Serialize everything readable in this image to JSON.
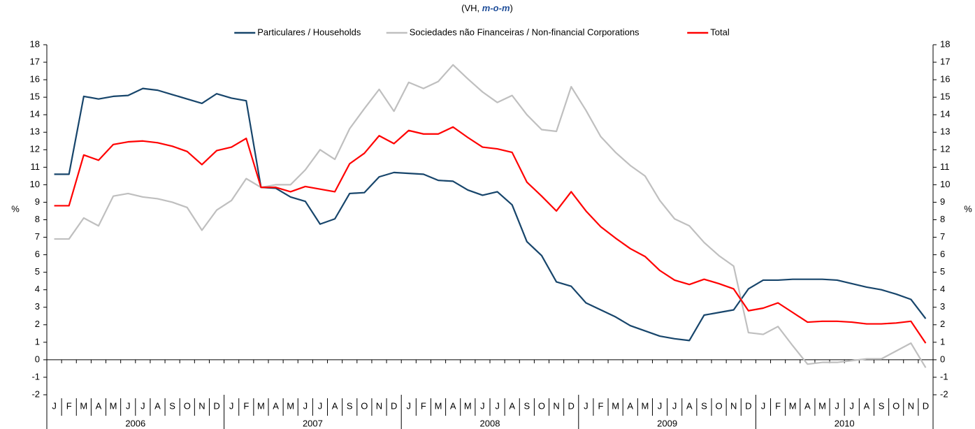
{
  "chart_data": {
    "type": "line",
    "subtitle_prefix": "(VH,",
    "subtitle_emphasis": "m-o-m",
    "subtitle_suffix": ")",
    "ylabel": "%",
    "y2label": "%",
    "ylim": [
      -2,
      18
    ],
    "yticks": [
      -2,
      -1,
      0,
      1,
      2,
      3,
      4,
      5,
      6,
      7,
      8,
      9,
      10,
      11,
      12,
      13,
      14,
      15,
      16,
      17,
      18
    ],
    "y2lim": [
      -2,
      18
    ],
    "y2ticks": [
      -2,
      -1,
      0,
      1,
      2,
      3,
      4,
      5,
      6,
      7,
      8,
      9,
      10,
      11,
      12,
      13,
      14,
      15,
      16,
      17,
      18
    ],
    "categories": [
      "J",
      "F",
      "M",
      "A",
      "M",
      "J",
      "J",
      "A",
      "S",
      "O",
      "N",
      "D",
      "J",
      "F",
      "M",
      "A",
      "M",
      "J",
      "J",
      "A",
      "S",
      "O",
      "N",
      "D",
      "J",
      "F",
      "M",
      "A",
      "M",
      "J",
      "J",
      "A",
      "S",
      "O",
      "N",
      "D",
      "J",
      "F",
      "M",
      "A",
      "M",
      "J",
      "J",
      "A",
      "S",
      "O",
      "N",
      "D",
      "J",
      "F",
      "M",
      "A",
      "M",
      "J",
      "J",
      "A",
      "S",
      "O",
      "N",
      "D"
    ],
    "years": [
      "2006",
      "2007",
      "2008",
      "2009",
      "2010"
    ],
    "legend": "top",
    "series": [
      {
        "name": "Particulares / Households",
        "color": "#17456b",
        "values": [
          10.6,
          10.6,
          15.05,
          14.9,
          15.05,
          15.1,
          15.5,
          15.4,
          15.15,
          14.9,
          14.65,
          15.2,
          14.95,
          14.8,
          9.85,
          9.8,
          9.3,
          9.05,
          7.75,
          8.05,
          9.5,
          9.55,
          10.45,
          10.7,
          10.65,
          10.6,
          10.25,
          10.2,
          9.7,
          9.4,
          9.6,
          8.85,
          6.75,
          5.95,
          4.45,
          4.2,
          3.25,
          2.85,
          2.45,
          1.95,
          1.65,
          1.35,
          1.2,
          1.1,
          2.55,
          2.7,
          2.85,
          4.05,
          4.55,
          4.55,
          4.6,
          4.6,
          4.6,
          4.55,
          4.35,
          4.15,
          4.0,
          3.75,
          3.45,
          2.35
        ]
      },
      {
        "name": "Sociedades não Financeiras / Non-financial Corporations",
        "color": "#bfbfbf",
        "values": [
          6.9,
          6.9,
          8.1,
          7.65,
          9.35,
          9.5,
          9.3,
          9.2,
          9.0,
          8.7,
          7.4,
          8.55,
          9.1,
          10.35,
          9.85,
          10.0,
          10.0,
          10.85,
          12.0,
          11.45,
          13.2,
          14.35,
          15.45,
          14.2,
          15.85,
          15.5,
          15.9,
          16.85,
          16.05,
          15.3,
          14.7,
          15.1,
          14.0,
          13.15,
          13.05,
          15.6,
          14.25,
          12.75,
          11.85,
          11.1,
          10.5,
          9.1,
          8.05,
          7.65,
          6.7,
          5.95,
          5.35,
          1.55,
          1.45,
          1.9,
          0.8,
          -0.25,
          -0.15,
          -0.15,
          -0.05,
          0.05,
          0.05,
          0.5,
          0.95,
          -0.45
        ]
      },
      {
        "name": "Total",
        "color": "#ff0000",
        "values": [
          8.8,
          8.8,
          11.7,
          11.4,
          12.3,
          12.45,
          12.5,
          12.4,
          12.2,
          11.9,
          11.15,
          11.95,
          12.15,
          12.65,
          9.85,
          9.85,
          9.6,
          9.9,
          9.75,
          9.6,
          11.2,
          11.8,
          12.8,
          12.35,
          13.1,
          12.9,
          12.9,
          13.3,
          12.7,
          12.15,
          12.05,
          11.85,
          10.15,
          9.35,
          8.5,
          9.6,
          8.5,
          7.6,
          6.95,
          6.35,
          5.9,
          5.1,
          4.55,
          4.3,
          4.6,
          4.35,
          4.05,
          2.8,
          2.95,
          3.25,
          2.7,
          2.15,
          2.2,
          2.2,
          2.15,
          2.05,
          2.05,
          2.1,
          2.2,
          0.95
        ]
      }
    ]
  }
}
